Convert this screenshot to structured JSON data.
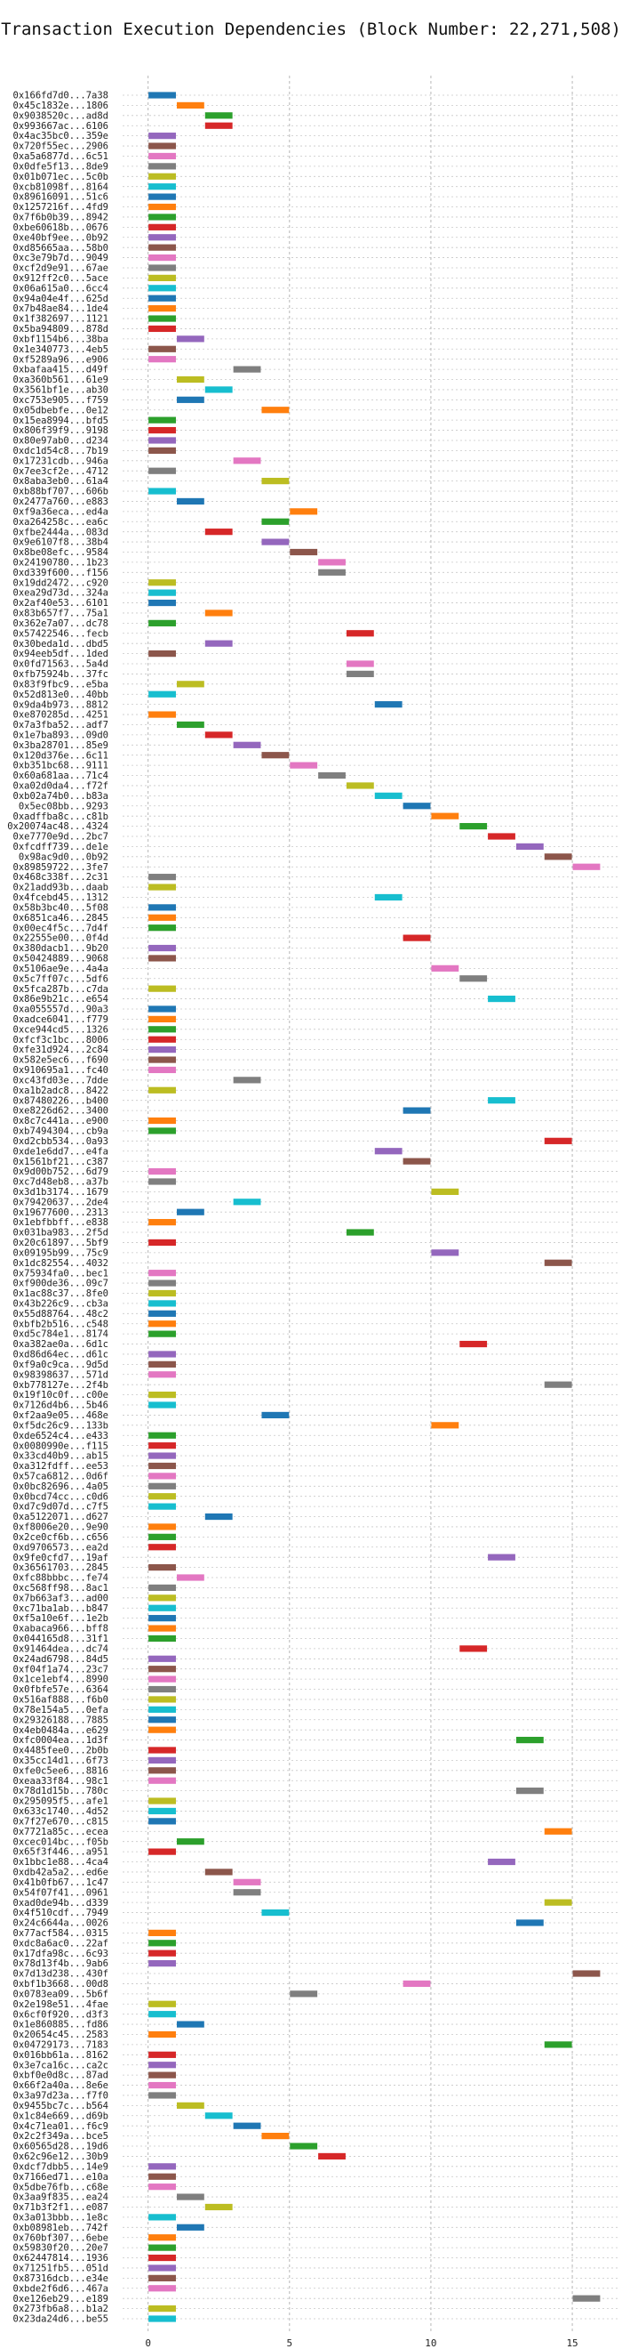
{
  "chart_data": {
    "type": "bar",
    "orientation": "horizontal-gantt",
    "title": "Transaction Execution Dependencies (Block Number: 22,271,508)",
    "xlabel": "",
    "ylabel": "",
    "xlim": [
      -0.9,
      16.6
    ],
    "xticks": [
      0,
      5,
      10,
      15
    ],
    "grid": true,
    "palette": [
      "#1f77b4",
      "#ff7f0e",
      "#2ca02c",
      "#d62728",
      "#9467bd",
      "#8c564b",
      "#e377c2",
      "#7f7f7f",
      "#bcbd22",
      "#17becf"
    ],
    "transactions": [
      {
        "label": "0x166fd7d0...7a38",
        "start": 0
      },
      {
        "label": "0x45c1832e...1806",
        "start": 1
      },
      {
        "label": "0x9038520c...ad8d",
        "start": 2
      },
      {
        "label": "0x993667ac...6106",
        "start": 2
      },
      {
        "label": "0x4ac35bc0...359e",
        "start": 0
      },
      {
        "label": "0x720f55ec...2906",
        "start": 0
      },
      {
        "label": "0xa5a6877d...6c51",
        "start": 0
      },
      {
        "label": "0x0dfe5f13...8de9",
        "start": 0
      },
      {
        "label": "0x01b071ec...5c0b",
        "start": 0
      },
      {
        "label": "0xcb81098f...8164",
        "start": 0
      },
      {
        "label": "0x89616091...51c6",
        "start": 0
      },
      {
        "label": "0x1257216f...4fd9",
        "start": 0
      },
      {
        "label": "0x7f6b0b39...8942",
        "start": 0
      },
      {
        "label": "0xbe60618b...0676",
        "start": 0
      },
      {
        "label": "0xe40bf9ee...0b92",
        "start": 0
      },
      {
        "label": "0xd85665aa...58b0",
        "start": 0
      },
      {
        "label": "0xc3e79b7d...9049",
        "start": 0
      },
      {
        "label": "0xcf2d9e91...67ae",
        "start": 0
      },
      {
        "label": "0x912ff2c0...5ace",
        "start": 0
      },
      {
        "label": "0x06a615a0...6cc4",
        "start": 0
      },
      {
        "label": "0x94a04e4f...625d",
        "start": 0
      },
      {
        "label": "0x7b48ae84...1de4",
        "start": 0
      },
      {
        "label": "0x1f382697...1121",
        "start": 0
      },
      {
        "label": "0x5ba94809...878d",
        "start": 0
      },
      {
        "label": "0xbf1154b6...38ba",
        "start": 1
      },
      {
        "label": "0x1e340773...4eb5",
        "start": 0
      },
      {
        "label": "0xf5289a96...e906",
        "start": 0
      },
      {
        "label": "0xbafaa415...d49f",
        "start": 3
      },
      {
        "label": "0xa360b561...61e9",
        "start": 1
      },
      {
        "label": "0x3561bf1e...ab30",
        "start": 2
      },
      {
        "label": "0xc753e905...f759",
        "start": 1
      },
      {
        "label": "0x05dbebfe...0e12",
        "start": 4
      },
      {
        "label": "0x15ea8994...bfd5",
        "start": 0
      },
      {
        "label": "0x806f39f9...9198",
        "start": 0
      },
      {
        "label": "0x80e97ab0...d234",
        "start": 0
      },
      {
        "label": "0xdc1d54c8...7b19",
        "start": 0
      },
      {
        "label": "0x17231cdb...946a",
        "start": 3
      },
      {
        "label": "0x7ee3cf2e...4712",
        "start": 0
      },
      {
        "label": "0x8aba3eb0...61a4",
        "start": 4
      },
      {
        "label": "0xb88bf707...606b",
        "start": 0
      },
      {
        "label": "0x2477a760...e883",
        "start": 1
      },
      {
        "label": "0xf9a36eca...ed4a",
        "start": 5
      },
      {
        "label": "0xa264258c...ea6c",
        "start": 4
      },
      {
        "label": "0xfbe2444a...083d",
        "start": 2
      },
      {
        "label": "0x9e6107f8...38b4",
        "start": 4
      },
      {
        "label": "0x8be08efc...9584",
        "start": 5
      },
      {
        "label": "0x24190780...1b23",
        "start": 6
      },
      {
        "label": "0xd339f600...f156",
        "start": 6
      },
      {
        "label": "0x19dd2472...c920",
        "start": 0
      },
      {
        "label": "0xea29d73d...324a",
        "start": 0
      },
      {
        "label": "0x2af40e53...6101",
        "start": 0
      },
      {
        "label": "0x83b657f7...75a1",
        "start": 2
      },
      {
        "label": "0x362e7a07...dc78",
        "start": 0
      },
      {
        "label": "0x57422546...fecb",
        "start": 7
      },
      {
        "label": "0x30beda1d...dbd5",
        "start": 2
      },
      {
        "label": "0x94eeb5df...1ded",
        "start": 0
      },
      {
        "label": "0x0fd71563...5a4d",
        "start": 7
      },
      {
        "label": "0xfb75924b...37fc",
        "start": 7
      },
      {
        "label": "0x83f9fbc9...e5ba",
        "start": 1
      },
      {
        "label": "0x52d813e0...40bb",
        "start": 0
      },
      {
        "label": "0x9da4b973...8812",
        "start": 8
      },
      {
        "label": "0xe870285d...4251",
        "start": 0
      },
      {
        "label": "0x7a3fba52...adf7",
        "start": 1
      },
      {
        "label": "0x1e7ba893...09d0",
        "start": 2
      },
      {
        "label": "0x3ba28701...85e9",
        "start": 3
      },
      {
        "label": "0x120d376e...6c11",
        "start": 4
      },
      {
        "label": "0xb351bc68...9111",
        "start": 5
      },
      {
        "label": "0x60a681aa...71c4",
        "start": 6
      },
      {
        "label": "0xa02d0da4...f72f",
        "start": 7
      },
      {
        "label": "0xb02a74b0...b83a",
        "start": 8
      },
      {
        "label": "0x5ec08bb...9293",
        "start": 9
      },
      {
        "label": "0xadffba8c...c81b",
        "start": 10
      },
      {
        "label": "0x20074ac48...4324",
        "start": 11
      },
      {
        "label": "0xe7770e9d...2bc7",
        "start": 12
      },
      {
        "label": "0xfcdff739...de1e",
        "start": 13
      },
      {
        "label": "0x98ac9d0...0b92",
        "start": 14
      },
      {
        "label": "0x89859722...3fe7",
        "start": 15
      },
      {
        "label": "0x468c338f...2c31",
        "start": 0
      },
      {
        "label": "0x21add93b...daab",
        "start": 0
      },
      {
        "label": "0x4fcebd45...1312",
        "start": 8
      },
      {
        "label": "0x58b3bc40...5f08",
        "start": 0
      },
      {
        "label": "0x6851ca46...2845",
        "start": 0
      },
      {
        "label": "0x00ec4f5c...7d4f",
        "start": 0
      },
      {
        "label": "0x22555e00...0f4d",
        "start": 9
      },
      {
        "label": "0x380dacb1...9b20",
        "start": 0
      },
      {
        "label": "0x50424889...9068",
        "start": 0
      },
      {
        "label": "0x5106ae9e...4a4a",
        "start": 10
      },
      {
        "label": "0x5c7ff07c...5df6",
        "start": 11
      },
      {
        "label": "0x5fca287b...c7da",
        "start": 0
      },
      {
        "label": "0x86e9b21c...e654",
        "start": 12
      },
      {
        "label": "0xa055557d...90a3",
        "start": 0
      },
      {
        "label": "0xadce6041...f779",
        "start": 0
      },
      {
        "label": "0xce944cd5...1326",
        "start": 0
      },
      {
        "label": "0xfcf3c1bc...8006",
        "start": 0
      },
      {
        "label": "0xfe31d924...2c84",
        "start": 0
      },
      {
        "label": "0x582e5ec6...f690",
        "start": 0
      },
      {
        "label": "0x910695a1...fc40",
        "start": 0
      },
      {
        "label": "0xc43fd03e...7dde",
        "start": 3
      },
      {
        "label": "0xa1b2adc8...8422",
        "start": 0
      },
      {
        "label": "0x87480226...b400",
        "start": 12
      },
      {
        "label": "0xe8226d62...3400",
        "start": 9
      },
      {
        "label": "0x8c7c441a...e900",
        "start": 0
      },
      {
        "label": "0xb7494304...cb9a",
        "start": 0
      },
      {
        "label": "0xd2cbb534...0a93",
        "start": 14
      },
      {
        "label": "0xde1e6dd7...e4fa",
        "start": 8
      },
      {
        "label": "0x1561bf21...c387",
        "start": 9
      },
      {
        "label": "0x9d00b752...6d79",
        "start": 0
      },
      {
        "label": "0xc7d48eb8...a37b",
        "start": 0
      },
      {
        "label": "0x3d1b3174...1679",
        "start": 10
      },
      {
        "label": "0x79420637...2de4",
        "start": 3
      },
      {
        "label": "0x19677600...2313",
        "start": 1
      },
      {
        "label": "0x1ebfbbff...e838",
        "start": 0
      },
      {
        "label": "0x031ba983...2f5d",
        "start": 7
      },
      {
        "label": "0x20c61897...5bf9",
        "start": 0
      },
      {
        "label": "0x09195b99...75c9",
        "start": 10
      },
      {
        "label": "0x1dc82554...4032",
        "start": 14
      },
      {
        "label": "0x75934fa0...bec1",
        "start": 0
      },
      {
        "label": "0xf900de36...09c7",
        "start": 0
      },
      {
        "label": "0x1ac88c37...8fe0",
        "start": 0
      },
      {
        "label": "0x43b226c9...cb3a",
        "start": 0
      },
      {
        "label": "0x55d88764...48c2",
        "start": 0
      },
      {
        "label": "0xbfb2b516...c548",
        "start": 0
      },
      {
        "label": "0xd5c784e1...8174",
        "start": 0
      },
      {
        "label": "0xa382ae0a...6d1c",
        "start": 11
      },
      {
        "label": "0xd86d64ec...d61c",
        "start": 0
      },
      {
        "label": "0xf9a0c9ca...9d5d",
        "start": 0
      },
      {
        "label": "0x98398637...571d",
        "start": 0
      },
      {
        "label": "0xb778127e...2f4b",
        "start": 14
      },
      {
        "label": "0x19f10c0f...c00e",
        "start": 0
      },
      {
        "label": "0x7126d4b6...5b46",
        "start": 0
      },
      {
        "label": "0xf2aa9e05...468e",
        "start": 4
      },
      {
        "label": "0xf5dc26c9...133b",
        "start": 10
      },
      {
        "label": "0xde6524c4...e433",
        "start": 0
      },
      {
        "label": "0x0080990e...f115",
        "start": 0
      },
      {
        "label": "0x33cd40b9...ab15",
        "start": 0
      },
      {
        "label": "0xa312fdff...ee53",
        "start": 0
      },
      {
        "label": "0x57ca6812...0d6f",
        "start": 0
      },
      {
        "label": "0x0bc82696...4a05",
        "start": 0
      },
      {
        "label": "0x0bcd74cc...c0d6",
        "start": 0
      },
      {
        "label": "0xd7c9d07d...c7f5",
        "start": 0
      },
      {
        "label": "0xa5122071...d627",
        "start": 2
      },
      {
        "label": "0xf8006e20...9e90",
        "start": 0
      },
      {
        "label": "0x2ce0cf6b...c656",
        "start": 0
      },
      {
        "label": "0xd9706573...ea2d",
        "start": 0
      },
      {
        "label": "0x9fe0cfd7...19af",
        "start": 12
      },
      {
        "label": "0x36561703...2845",
        "start": 0
      },
      {
        "label": "0xfc88bbbc...fe74",
        "start": 1
      },
      {
        "label": "0xc568ff98...8ac1",
        "start": 0
      },
      {
        "label": "0x7b663af3...ad00",
        "start": 0
      },
      {
        "label": "0xc71ba1ab...b847",
        "start": 0
      },
      {
        "label": "0xf5a10e6f...1e2b",
        "start": 0
      },
      {
        "label": "0xabaca966...bff8",
        "start": 0
      },
      {
        "label": "0x044165d8...31f1",
        "start": 0
      },
      {
        "label": "0x91464dea...dc74",
        "start": 11
      },
      {
        "label": "0x24ad6798...84d5",
        "start": 0
      },
      {
        "label": "0xf04f1a74...23c7",
        "start": 0
      },
      {
        "label": "0x1ce1ebf4...8990",
        "start": 0
      },
      {
        "label": "0x0fbfe57e...6364",
        "start": 0
      },
      {
        "label": "0x516af888...f6b0",
        "start": 0
      },
      {
        "label": "0x78e154a5...0efa",
        "start": 0
      },
      {
        "label": "0x29326188...7885",
        "start": 0
      },
      {
        "label": "0x4eb0484a...e629",
        "start": 0
      },
      {
        "label": "0xfc0004ea...1d3f",
        "start": 13
      },
      {
        "label": "0x4485fee0...2b0b",
        "start": 0
      },
      {
        "label": "0x35cc14d1...6f73",
        "start": 0
      },
      {
        "label": "0xfe0c5ee6...8816",
        "start": 0
      },
      {
        "label": "0xeaa33f84...98c1",
        "start": 0
      },
      {
        "label": "0x78d1d15b...780c",
        "start": 13
      },
      {
        "label": "0x295095f5...afe1",
        "start": 0
      },
      {
        "label": "0x633c1740...4d52",
        "start": 0
      },
      {
        "label": "0x7f27e670...c815",
        "start": 0
      },
      {
        "label": "0x7721a85c...ecea",
        "start": 14
      },
      {
        "label": "0xcec014bc...f05b",
        "start": 1
      },
      {
        "label": "0x65f3f446...a951",
        "start": 0
      },
      {
        "label": "0x1bbc1e88...4ca4",
        "start": 12
      },
      {
        "label": "0xdb42a5a2...ed6e",
        "start": 2
      },
      {
        "label": "0x41b0fb67...1c47",
        "start": 3
      },
      {
        "label": "0x54f07f41...0961",
        "start": 3
      },
      {
        "label": "0xad0de94b...d339",
        "start": 14
      },
      {
        "label": "0x4f510cdf...7949",
        "start": 4
      },
      {
        "label": "0x24c6644a...0026",
        "start": 13
      },
      {
        "label": "0x77acf584...0315",
        "start": 0
      },
      {
        "label": "0xdc8a6ac0...22af",
        "start": 0
      },
      {
        "label": "0x17dfa98c...6c93",
        "start": 0
      },
      {
        "label": "0x78d13f4b...9ab6",
        "start": 0
      },
      {
        "label": "0x7d13d238...430f",
        "start": 15
      },
      {
        "label": "0xbf1b3668...00d8",
        "start": 9
      },
      {
        "label": "0x0783ea09...5b6f",
        "start": 5
      },
      {
        "label": "0x2e198e51...4fae",
        "start": 0
      },
      {
        "label": "0x6cf0f920...d3f3",
        "start": 0
      },
      {
        "label": "0x1e860885...fd86",
        "start": 1
      },
      {
        "label": "0x20654c45...2583",
        "start": 0
      },
      {
        "label": "0x04729173...7183",
        "start": 14
      },
      {
        "label": "0x016bb61a...8162",
        "start": 0
      },
      {
        "label": "0x3e7ca16c...ca2c",
        "start": 0
      },
      {
        "label": "0xbf0e0d8c...87ad",
        "start": 0
      },
      {
        "label": "0x66f2a40a...8e6e",
        "start": 0
      },
      {
        "label": "0x3a97d23a...f7f0",
        "start": 0
      },
      {
        "label": "0x9455bc7c...b564",
        "start": 1
      },
      {
        "label": "0x1c84e669...d69b",
        "start": 2
      },
      {
        "label": "0x4c71ea01...f6c9",
        "start": 3
      },
      {
        "label": "0x2c2f349a...bce5",
        "start": 4
      },
      {
        "label": "0x60565d28...19d6",
        "start": 5
      },
      {
        "label": "0x62c96e12...30b9",
        "start": 6
      },
      {
        "label": "0xdcf7dbb5...14e9",
        "start": 0
      },
      {
        "label": "0x7166ed71...e10a",
        "start": 0
      },
      {
        "label": "0x5dbe76fb...c68e",
        "start": 0
      },
      {
        "label": "0x3aa9f835...ea24",
        "start": 1
      },
      {
        "label": "0x71b3f2f1...e087",
        "start": 2
      },
      {
        "label": "0x3a013bbb...1e8c",
        "start": 0
      },
      {
        "label": "0xb08981eb...742f",
        "start": 1
      },
      {
        "label": "0x760bf307...6ebe",
        "start": 0
      },
      {
        "label": "0x59830f20...20e7",
        "start": 0
      },
      {
        "label": "0x62447814...1936",
        "start": 0
      },
      {
        "label": "0x71251fb5...051d",
        "start": 0
      },
      {
        "label": "0x87316dcb...e34e",
        "start": 0
      },
      {
        "label": "0xbde2f6d6...467a",
        "start": 0
      },
      {
        "label": "0xe126eb29...e189",
        "start": 15
      },
      {
        "label": "0x273fb6a8...b1a2",
        "start": 0
      },
      {
        "label": "0x23da24d6...be55",
        "start": 0
      }
    ]
  }
}
